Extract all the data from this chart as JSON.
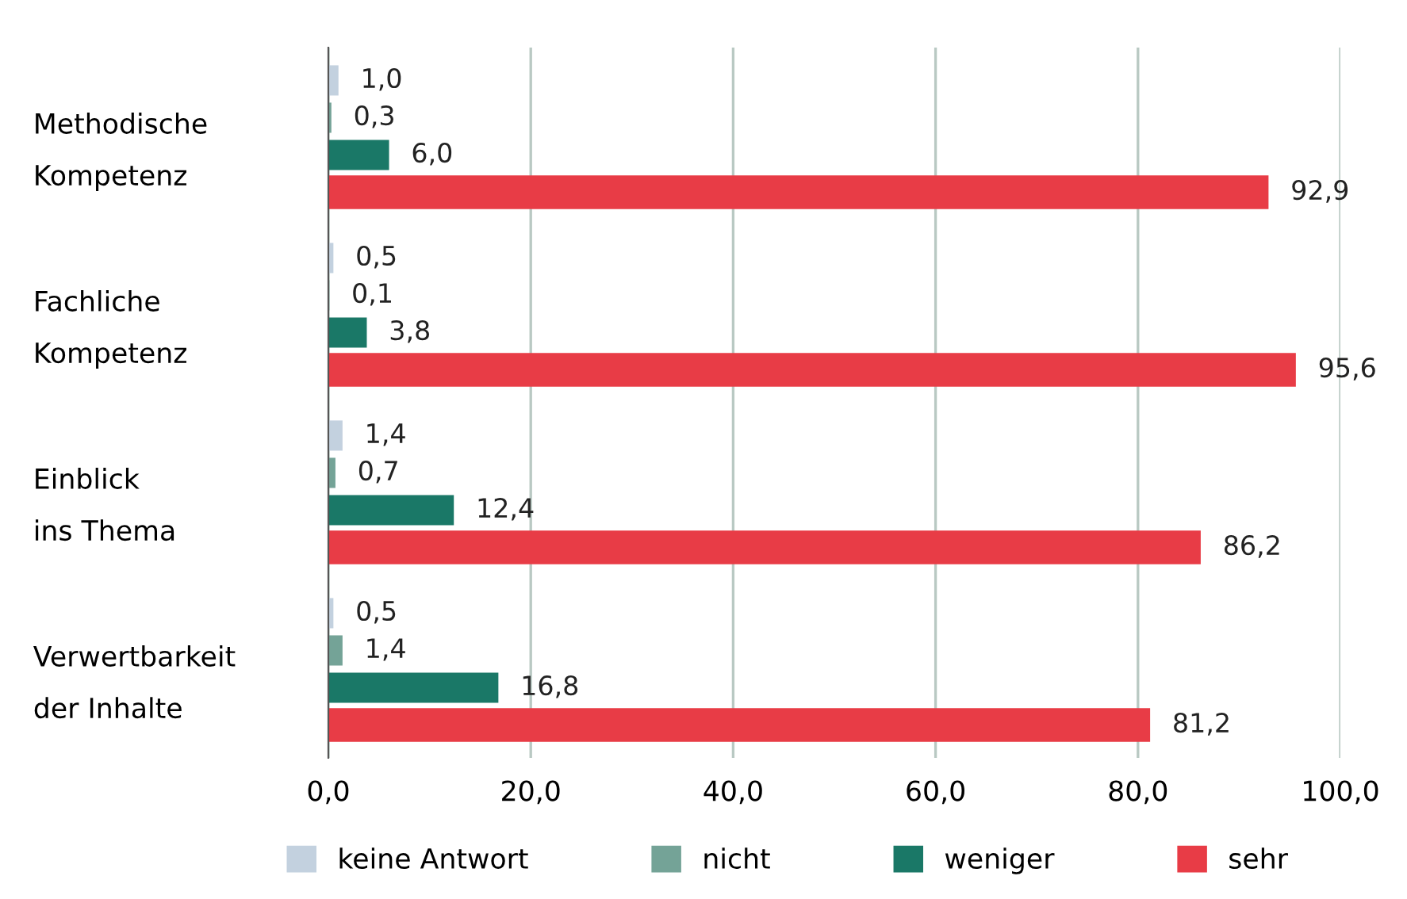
{
  "chart_data": {
    "type": "bar",
    "orientation": "horizontal",
    "categories": [
      "Methodische\nKompetenz",
      "Fachliche\nKompetenz",
      "Einblick\nins Thema",
      "Verwertbarkeit\nder Inhalte"
    ],
    "series": [
      {
        "name": "keine Antwort",
        "color": "#c3d1df",
        "values": [
          1.0,
          0.5,
          1.4,
          0.5
        ],
        "value_labels": [
          "1,0",
          "0,5",
          "1,4",
          "0,5"
        ]
      },
      {
        "name": "nicht",
        "color": "#74a397",
        "values": [
          0.3,
          0.1,
          0.7,
          1.4
        ],
        "value_labels": [
          "0,3",
          "0,1",
          "0,7",
          "1,4"
        ]
      },
      {
        "name": "weniger",
        "color": "#1a7867",
        "values": [
          6.0,
          3.8,
          12.4,
          16.8
        ],
        "value_labels": [
          "6,0",
          "3,8",
          "12,4",
          "16,8"
        ]
      },
      {
        "name": "sehr",
        "color": "#e83c46",
        "values": [
          92.9,
          95.6,
          86.2,
          81.2
        ],
        "value_labels": [
          "92,9",
          "95,6",
          "86,2",
          "81,2"
        ]
      }
    ],
    "xlim": [
      0,
      100
    ],
    "xticks": [
      {
        "value": 0,
        "label": "0,0"
      },
      {
        "value": 20,
        "label": "20,0"
      },
      {
        "value": 40,
        "label": "40,0"
      },
      {
        "value": 60,
        "label": "60,0"
      },
      {
        "value": 80,
        "label": "80,0"
      },
      {
        "value": 100,
        "label": "100,0"
      }
    ],
    "grid": "x",
    "legend": "bottom"
  }
}
